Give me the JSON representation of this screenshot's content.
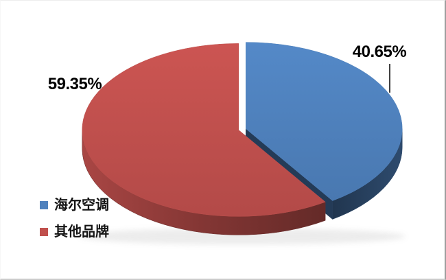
{
  "chart_data": {
    "type": "pie",
    "style": "3d-exploded",
    "title": "",
    "start_angle_deg": 0,
    "direction": "clockwise",
    "categories": [
      "海尔空调",
      "其他品牌"
    ],
    "values": [
      40.65,
      59.35
    ],
    "slices": [
      {
        "label": "海尔空调",
        "value": 40.65,
        "display": "40.65%",
        "color": "#4f81bd"
      },
      {
        "label": "其他品牌",
        "value": 59.35,
        "display": "59.35%",
        "color": "#c0504d"
      }
    ],
    "legend": {
      "position": "bottom-left",
      "entries": [
        "海尔空调",
        "其他品牌"
      ]
    },
    "background": "#ffffff"
  }
}
